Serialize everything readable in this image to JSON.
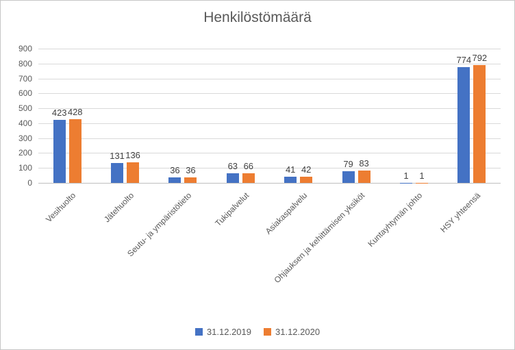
{
  "chart_data": {
    "type": "bar",
    "title": "Henkilöstömäärä",
    "categories": [
      "Vesihuolto",
      "Jätehuolto",
      "Seutu- ja ympäristötieto",
      "Tukipalvelut",
      "Asiakaspalvelu",
      "Ohjauksen ja kehittämisen yksiköt",
      "Kuntayhtymän johto",
      "HSY yhteensä"
    ],
    "series": [
      {
        "name": "31.12.2019",
        "color": "#4472C4",
        "values": [
          423,
          131,
          36,
          63,
          41,
          79,
          1,
          774
        ]
      },
      {
        "name": "31.12.2020",
        "color": "#ED7D31",
        "values": [
          428,
          136,
          36,
          66,
          42,
          83,
          1,
          792
        ]
      }
    ],
    "xlabel": "",
    "ylabel": "",
    "ylim": [
      0,
      900
    ],
    "ytick_step": 100,
    "grid": true,
    "data_labels": true,
    "legend_position": "bottom",
    "colors": {
      "gridline": "#d9d9d9",
      "axis_line": "#bfbfbf",
      "axis_text": "#595959",
      "data_label_text": "#404040",
      "title_text": "#595959"
    }
  }
}
